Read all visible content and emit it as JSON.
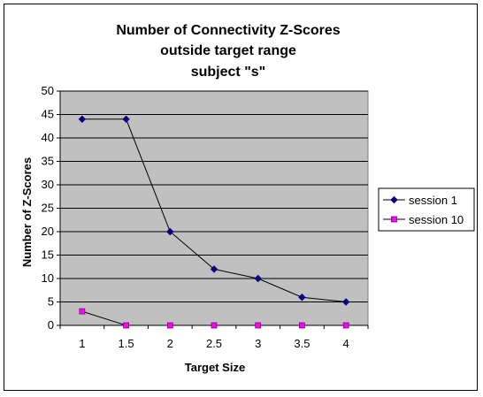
{
  "chart_data": {
    "type": "line",
    "title_lines": [
      "Number of Connectivity Z-Scores",
      "outside target range",
      "subject \"s\""
    ],
    "xlabel": "Target Size",
    "ylabel": "Number of Z-Scores",
    "categories": [
      "1",
      "1.5",
      "2",
      "2.5",
      "3",
      "3.5",
      "4"
    ],
    "ylim": [
      0,
      50
    ],
    "yticks": [
      "0",
      "5",
      "10",
      "15",
      "20",
      "25",
      "30",
      "35",
      "40",
      "45",
      "50"
    ],
    "grid": true,
    "legend_position": "right",
    "plot_background": "#c0c0c0",
    "series": [
      {
        "name": "session 1",
        "values": [
          44,
          44,
          20,
          12,
          10,
          6,
          5
        ],
        "marker": "diamond",
        "color": "#000080"
      },
      {
        "name": "session 10",
        "values": [
          3,
          0,
          0,
          0,
          0,
          0,
          0
        ],
        "marker": "square",
        "color": "#ff00ff"
      }
    ]
  }
}
